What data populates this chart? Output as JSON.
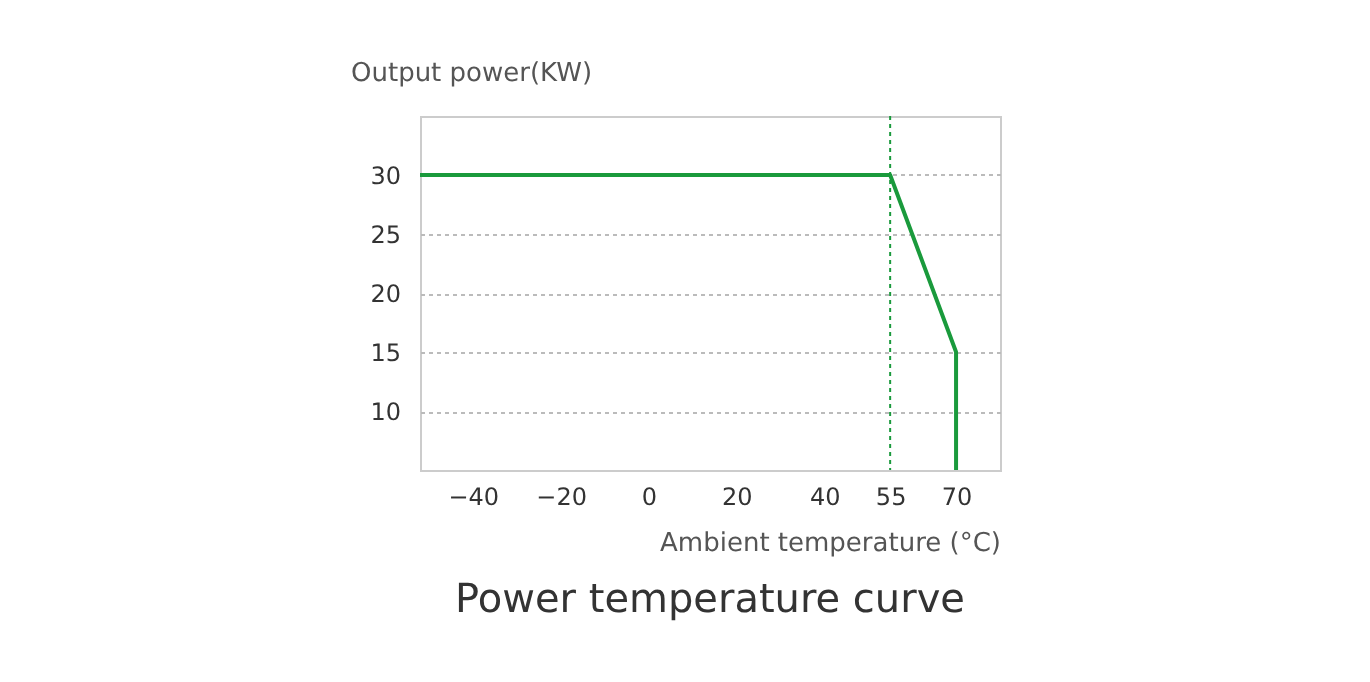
{
  "chart_data": {
    "type": "line",
    "title": "Power temperature curve",
    "xlabel": "Ambient temperature (°C)",
    "ylabel": "Output power(KW)",
    "x": [
      -52,
      55,
      70,
      70
    ],
    "series": [
      {
        "color": "#1a9a3c",
        "values": [
          30,
          30,
          15,
          5
        ]
      }
    ],
    "xlim": [
      -52,
      80
    ],
    "xticks": [
      -40,
      -20,
      0,
      20,
      40,
      55,
      70
    ],
    "ylim": [
      5,
      35
    ],
    "yticks": [
      10,
      15,
      20,
      25,
      30
    ],
    "grid": "y",
    "marker": "none",
    "line_style": "solid",
    "ref_lines": [
      {
        "axis": "x",
        "value": 55,
        "color": "#1a9a3c",
        "line_style": "dotted"
      }
    ]
  }
}
